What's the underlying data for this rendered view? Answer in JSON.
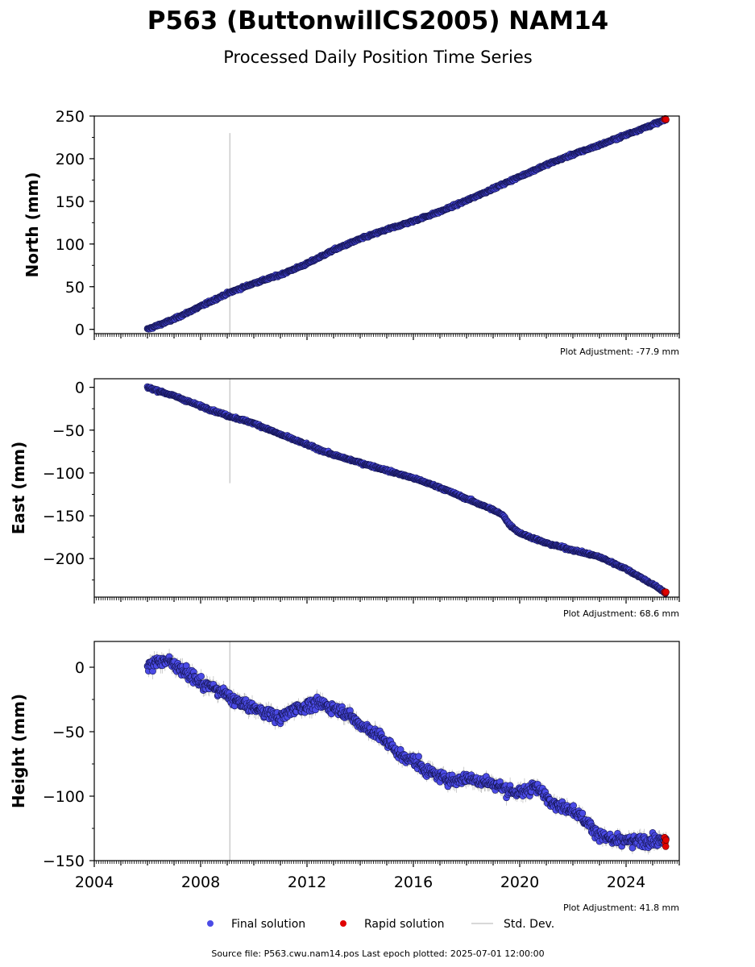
{
  "title": "P563 (ButtonwillCS2005) NAM14",
  "subtitle": "Processed Daily Position Time Series",
  "footer": "Source file: P563.cwu.nam14.pos  Last epoch plotted: 2025-07-01 12:00:00",
  "legend": [
    {
      "label": "Final solution",
      "color": "#4b4be6",
      "marker": "circle"
    },
    {
      "label": "Rapid solution",
      "color": "#e00000",
      "marker": "circle"
    },
    {
      "label": "Std. Dev.",
      "color": "#cccccc",
      "marker": "line"
    }
  ],
  "colors": {
    "final": "#4b4be6",
    "rapid": "#e00000",
    "stddev": "#b0b0b0",
    "edge": "#141450"
  },
  "chart_data": [
    {
      "type": "scatter",
      "ylabel": "North (mm)",
      "adjustment": "Plot Adjustment: -77.9 mm",
      "xlim": [
        2004,
        2026
      ],
      "ylim": [
        -5,
        250
      ],
      "yticks": [
        0,
        50,
        100,
        150,
        200,
        250
      ],
      "ytick_labels": [
        "0",
        "50",
        "100",
        "150",
        "200",
        "250"
      ],
      "vline": {
        "x": 2009.1,
        "y_range": [
          -5,
          230
        ]
      },
      "start": 2006.0,
      "end": 2025.5,
      "noise": 1.5,
      "stddev": 0.8,
      "series": [
        {
          "x": [
            2006.0,
            2007.0,
            2008.0,
            2009.0,
            2010.0,
            2011.0,
            2012.0,
            2013.0,
            2014.0,
            2015.0,
            2016.0,
            2017.0,
            2018.0,
            2019.0,
            2020.0,
            2021.0,
            2022.0,
            2023.0,
            2024.0,
            2025.0,
            2025.5
          ],
          "y": [
            0,
            12,
            27,
            42,
            54,
            64,
            77,
            93,
            106,
            117,
            127,
            138,
            151,
            165,
            179,
            193,
            205,
            216,
            228,
            240,
            246
          ]
        }
      ],
      "rapid": {
        "x": [
          2025.45,
          2025.48,
          2025.5
        ],
        "y": [
          246,
          247,
          246
        ]
      }
    },
    {
      "type": "scatter",
      "ylabel": "East (mm)",
      "adjustment": "Plot Adjustment: 68.6 mm",
      "xlim": [
        2004,
        2026
      ],
      "ylim": [
        -245,
        10
      ],
      "yticks": [
        0,
        -50,
        -100,
        -150,
        -200
      ],
      "ytick_labels": [
        "0",
        "−50",
        "−100",
        "−150",
        "−200"
      ],
      "vline": {
        "x": 2009.1,
        "y_range": [
          -112,
          10
        ]
      },
      "start": 2006.0,
      "end": 2025.5,
      "noise": 1.5,
      "stddev": 0.8,
      "series": [
        {
          "x": [
            2006.0,
            2007.0,
            2008.0,
            2009.0,
            2010.0,
            2011.0,
            2012.0,
            2013.0,
            2014.0,
            2015.0,
            2016.0,
            2017.0,
            2018.0,
            2019.0,
            2019.4,
            2019.6,
            2020.0,
            2021.0,
            2022.0,
            2023.0,
            2024.0,
            2025.0,
            2025.5
          ],
          "y": [
            0,
            -10,
            -22,
            -33,
            -42,
            -55,
            -67,
            -79,
            -88,
            -97,
            -106,
            -117,
            -130,
            -143,
            -150,
            -160,
            -170,
            -182,
            -190,
            -198,
            -212,
            -230,
            -240
          ]
        }
      ],
      "rapid": {
        "x": [
          2025.45,
          2025.48,
          2025.5
        ],
        "y": [
          -239,
          -240,
          -239
        ]
      }
    },
    {
      "type": "scatter",
      "ylabel": "Height (mm)",
      "adjustment": "Plot Adjustment: 41.8 mm",
      "xlim": [
        2004,
        2026
      ],
      "ylim": [
        -150,
        20
      ],
      "yticks": [
        0,
        -50,
        -100,
        -150
      ],
      "ytick_labels": [
        "0",
        "−50",
        "−100",
        "−150"
      ],
      "xticks": [
        2004,
        2008,
        2012,
        2016,
        2020,
        2024
      ],
      "xtick_labels": [
        "2004",
        "2008",
        "2012",
        "2016",
        "2020",
        "2024"
      ],
      "vline": {
        "x": 2009.1,
        "y_range": [
          -150,
          20
        ]
      },
      "start": 2006.0,
      "end": 2025.5,
      "noise": 5,
      "stddev": 4,
      "series": [
        {
          "x": [
            2006.0,
            2006.5,
            2007.0,
            2007.5,
            2008.0,
            2008.5,
            2009.0,
            2009.5,
            2010.0,
            2010.5,
            2011.0,
            2011.5,
            2012.0,
            2012.5,
            2013.0,
            2013.5,
            2014.0,
            2014.5,
            2015.0,
            2015.5,
            2016.0,
            2016.5,
            2017.0,
            2017.5,
            2018.0,
            2018.5,
            2019.0,
            2019.5,
            2020.0,
            2020.5,
            2021.0,
            2021.5,
            2022.0,
            2022.5,
            2023.0,
            2023.5,
            2024.0,
            2024.5,
            2025.0,
            2025.5
          ],
          "y": [
            0,
            6,
            3,
            -5,
            -12,
            -16,
            -22,
            -28,
            -32,
            -35,
            -40,
            -32,
            -30,
            -28,
            -32,
            -35,
            -45,
            -50,
            -58,
            -68,
            -72,
            -80,
            -85,
            -88,
            -86,
            -88,
            -90,
            -95,
            -98,
            -92,
            -100,
            -108,
            -110,
            -120,
            -130,
            -135,
            -135,
            -135,
            -135,
            -135
          ]
        }
      ],
      "rapid": {
        "x": [
          2025.45,
          2025.47,
          2025.49,
          2025.5
        ],
        "y": [
          -132,
          -136,
          -139,
          -134
        ]
      }
    }
  ]
}
